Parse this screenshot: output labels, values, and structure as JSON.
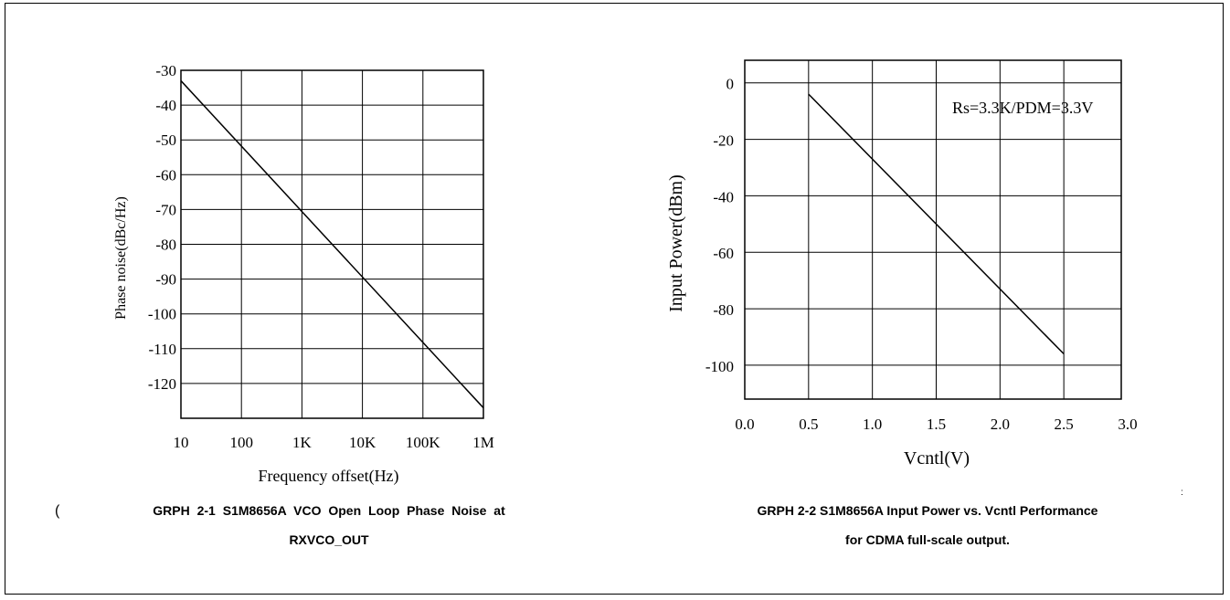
{
  "charts": [
    {
      "id": "graph1",
      "caption_line1": "GRPH 2-1 S1M8656A VCO Open Loop Phase Noise at",
      "caption_line2": "RXVCO_OUT",
      "caption_prefix_mark": "(",
      "chart_data": {
        "type": "line",
        "xlabel": "Frequency offset(Hz)",
        "ylabel": "Phase noise(dBc/Hz)",
        "x_scale": "log",
        "x_tick_labels": [
          "10",
          "100",
          "1K",
          "10K",
          "100K",
          "1M"
        ],
        "x_tick_values": [
          10,
          100,
          1000,
          10000,
          100000,
          1000000
        ],
        "y_tick_labels": [
          "-30",
          "-40",
          "-50",
          "-60",
          "-70",
          "-80",
          "-90",
          "-100",
          "-110",
          "-120"
        ],
        "y_tick_values": [
          -30,
          -40,
          -50,
          -60,
          -70,
          -80,
          -90,
          -100,
          -110,
          -120
        ],
        "xlim": [
          10,
          1000000
        ],
        "ylim": [
          -130,
          -30
        ],
        "grid": true,
        "series": [
          {
            "x": [
              10,
              1000000
            ],
            "y": [
              -33,
              -127
            ]
          }
        ]
      }
    },
    {
      "id": "graph2",
      "caption_line1": "GRPH 2-2 S1M8656A Input Power vs. Vcntl Performance",
      "caption_line2": "for CDMA full-scale output.",
      "caption_suffix_mark": ":",
      "chart_data": {
        "type": "line",
        "xlabel": "Vcntl(V)",
        "ylabel": "Input Power(dBm)",
        "annotation": "Rs=3.3K/PDM=3.3V",
        "x_tick_labels": [
          "0.0",
          "0.5",
          "1.0",
          "1.5",
          "2.0",
          "2.5",
          "3.0"
        ],
        "x_tick_values": [
          0.0,
          0.5,
          1.0,
          1.5,
          2.0,
          2.5,
          3.0
        ],
        "y_tick_labels": [
          "0",
          "-20",
          "-40",
          "-60",
          "-80",
          "-100"
        ],
        "y_tick_values": [
          0,
          -20,
          -40,
          -60,
          -80,
          -100
        ],
        "xlim": [
          0.0,
          2.95
        ],
        "ylim": [
          -112,
          8
        ],
        "grid": true,
        "series": [
          {
            "x": [
              0.5,
              2.5
            ],
            "y": [
              -4,
              -96
            ]
          }
        ]
      }
    }
  ]
}
